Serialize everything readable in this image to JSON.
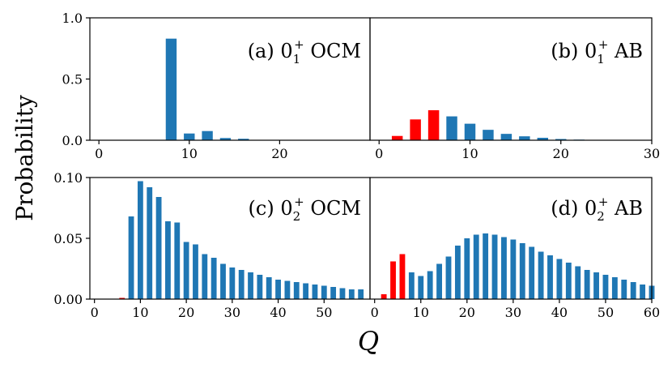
{
  "figure": {
    "ylabel": "Probability",
    "xlabel": "Q"
  },
  "colors": {
    "blue": "#1f77b4",
    "red": "#ff0000"
  },
  "chart_data": [
    {
      "id": "a",
      "type": "bar",
      "label_prefix": "(a) 0",
      "label_sub": "1",
      "label_sup": "+",
      "label_suffix": " OCM",
      "xlim": [
        -1,
        30
      ],
      "ylim": [
        0,
        1.0
      ],
      "xticks": [
        0,
        10,
        20
      ],
      "yticks": [
        0.0,
        0.5,
        1.0
      ],
      "ytick_labels": [
        "0.0",
        "0.5",
        "1.0"
      ],
      "bars": [
        {
          "x": 8,
          "y": 0.83,
          "c": "blue"
        },
        {
          "x": 10,
          "y": 0.055,
          "c": "blue"
        },
        {
          "x": 12,
          "y": 0.075,
          "c": "blue"
        },
        {
          "x": 14,
          "y": 0.018,
          "c": "blue"
        },
        {
          "x": 16,
          "y": 0.012,
          "c": "blue"
        }
      ]
    },
    {
      "id": "b",
      "type": "bar",
      "label_prefix": "(b) 0",
      "label_sub": "1",
      "label_sup": "+",
      "label_suffix": " AB",
      "xlim": [
        -1,
        30
      ],
      "ylim": [
        0,
        1.0
      ],
      "xticks": [
        0,
        10,
        20,
        30
      ],
      "yticks": [],
      "bars": [
        {
          "x": 2,
          "y": 0.035,
          "c": "red"
        },
        {
          "x": 4,
          "y": 0.17,
          "c": "red"
        },
        {
          "x": 6,
          "y": 0.245,
          "c": "red"
        },
        {
          "x": 8,
          "y": 0.195,
          "c": "blue"
        },
        {
          "x": 10,
          "y": 0.135,
          "c": "blue"
        },
        {
          "x": 12,
          "y": 0.085,
          "c": "blue"
        },
        {
          "x": 14,
          "y": 0.052,
          "c": "blue"
        },
        {
          "x": 16,
          "y": 0.032,
          "c": "blue"
        },
        {
          "x": 18,
          "y": 0.02,
          "c": "blue"
        },
        {
          "x": 20,
          "y": 0.01,
          "c": "blue"
        },
        {
          "x": 22,
          "y": 0.005,
          "c": "blue"
        }
      ]
    },
    {
      "id": "c",
      "type": "bar",
      "label_prefix": "(c) 0",
      "label_sub": "2",
      "label_sup": "+",
      "label_suffix": " OCM",
      "xlim": [
        -1,
        60
      ],
      "ylim": [
        0,
        0.1
      ],
      "xticks": [
        0,
        10,
        20,
        30,
        40,
        50
      ],
      "yticks": [
        0.0,
        0.05,
        0.1
      ],
      "ytick_labels": [
        "0.00",
        "0.05",
        "0.10"
      ],
      "bars": [
        {
          "x": 6,
          "y": 0.001,
          "c": "red"
        },
        {
          "x": 8,
          "y": 0.068,
          "c": "blue"
        },
        {
          "x": 10,
          "y": 0.097,
          "c": "blue"
        },
        {
          "x": 12,
          "y": 0.092,
          "c": "blue"
        },
        {
          "x": 14,
          "y": 0.084,
          "c": "blue"
        },
        {
          "x": 16,
          "y": 0.064,
          "c": "blue"
        },
        {
          "x": 18,
          "y": 0.063,
          "c": "blue"
        },
        {
          "x": 20,
          "y": 0.047,
          "c": "blue"
        },
        {
          "x": 22,
          "y": 0.045,
          "c": "blue"
        },
        {
          "x": 24,
          "y": 0.037,
          "c": "blue"
        },
        {
          "x": 26,
          "y": 0.034,
          "c": "blue"
        },
        {
          "x": 28,
          "y": 0.029,
          "c": "blue"
        },
        {
          "x": 30,
          "y": 0.026,
          "c": "blue"
        },
        {
          "x": 32,
          "y": 0.024,
          "c": "blue"
        },
        {
          "x": 34,
          "y": 0.022,
          "c": "blue"
        },
        {
          "x": 36,
          "y": 0.02,
          "c": "blue"
        },
        {
          "x": 38,
          "y": 0.018,
          "c": "blue"
        },
        {
          "x": 40,
          "y": 0.016,
          "c": "blue"
        },
        {
          "x": 42,
          "y": 0.015,
          "c": "blue"
        },
        {
          "x": 44,
          "y": 0.014,
          "c": "blue"
        },
        {
          "x": 46,
          "y": 0.013,
          "c": "blue"
        },
        {
          "x": 48,
          "y": 0.012,
          "c": "blue"
        },
        {
          "x": 50,
          "y": 0.011,
          "c": "blue"
        },
        {
          "x": 52,
          "y": 0.01,
          "c": "blue"
        },
        {
          "x": 54,
          "y": 0.009,
          "c": "blue"
        },
        {
          "x": 56,
          "y": 0.008,
          "c": "blue"
        },
        {
          "x": 58,
          "y": 0.008,
          "c": "blue"
        }
      ]
    },
    {
      "id": "d",
      "type": "bar",
      "label_prefix": "(d) 0",
      "label_sub": "2",
      "label_sup": "+",
      "label_suffix": " AB",
      "xlim": [
        -1,
        60
      ],
      "ylim": [
        0,
        0.1
      ],
      "xticks": [
        0,
        10,
        20,
        30,
        40,
        50,
        60
      ],
      "yticks": [],
      "bars": [
        {
          "x": 2,
          "y": 0.004,
          "c": "red"
        },
        {
          "x": 4,
          "y": 0.031,
          "c": "red"
        },
        {
          "x": 6,
          "y": 0.037,
          "c": "red"
        },
        {
          "x": 8,
          "y": 0.022,
          "c": "blue"
        },
        {
          "x": 10,
          "y": 0.019,
          "c": "blue"
        },
        {
          "x": 12,
          "y": 0.023,
          "c": "blue"
        },
        {
          "x": 14,
          "y": 0.029,
          "c": "blue"
        },
        {
          "x": 16,
          "y": 0.035,
          "c": "blue"
        },
        {
          "x": 18,
          "y": 0.044,
          "c": "blue"
        },
        {
          "x": 20,
          "y": 0.05,
          "c": "blue"
        },
        {
          "x": 22,
          "y": 0.053,
          "c": "blue"
        },
        {
          "x": 24,
          "y": 0.054,
          "c": "blue"
        },
        {
          "x": 26,
          "y": 0.053,
          "c": "blue"
        },
        {
          "x": 28,
          "y": 0.051,
          "c": "blue"
        },
        {
          "x": 30,
          "y": 0.049,
          "c": "blue"
        },
        {
          "x": 32,
          "y": 0.046,
          "c": "blue"
        },
        {
          "x": 34,
          "y": 0.043,
          "c": "blue"
        },
        {
          "x": 36,
          "y": 0.039,
          "c": "blue"
        },
        {
          "x": 38,
          "y": 0.036,
          "c": "blue"
        },
        {
          "x": 40,
          "y": 0.033,
          "c": "blue"
        },
        {
          "x": 42,
          "y": 0.03,
          "c": "blue"
        },
        {
          "x": 44,
          "y": 0.027,
          "c": "blue"
        },
        {
          "x": 46,
          "y": 0.024,
          "c": "blue"
        },
        {
          "x": 48,
          "y": 0.022,
          "c": "blue"
        },
        {
          "x": 50,
          "y": 0.02,
          "c": "blue"
        },
        {
          "x": 52,
          "y": 0.018,
          "c": "blue"
        },
        {
          "x": 54,
          "y": 0.016,
          "c": "blue"
        },
        {
          "x": 56,
          "y": 0.014,
          "c": "blue"
        },
        {
          "x": 58,
          "y": 0.012,
          "c": "blue"
        },
        {
          "x": 60,
          "y": 0.011,
          "c": "blue"
        }
      ]
    }
  ]
}
